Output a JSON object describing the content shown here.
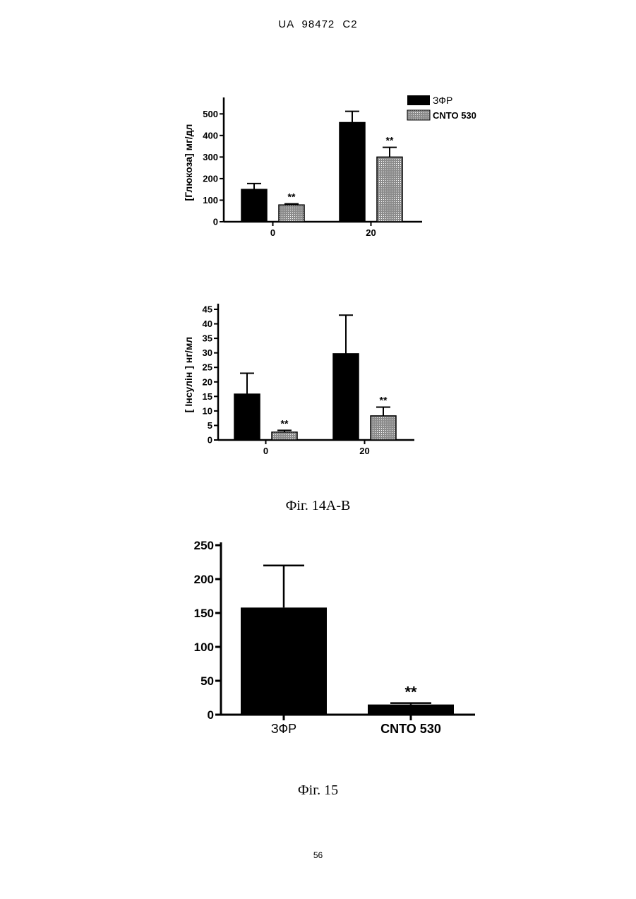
{
  "header": {
    "title": "UA   98472   C2"
  },
  "captions": {
    "fig14": "Фіг. 14А-В",
    "fig15": "Фіг. 15"
  },
  "page_number": "56",
  "colors": {
    "vehicle": "#000000",
    "treatment_fill": "#8c8c8c"
  },
  "chart_data": [
    {
      "type": "bar",
      "ylabel": "[Глюкоза] мг/дл",
      "categories": [
        "0",
        "20"
      ],
      "yticks": [
        "0",
        "100",
        "200",
        "300",
        "400",
        "500"
      ],
      "ylim": [
        0,
        550
      ],
      "legend_position": "top-right",
      "series": [
        {
          "name": "ЗФР",
          "values": [
            150,
            460
          ],
          "errors": [
            27,
            52
          ],
          "annotations": [
            "",
            ""
          ]
        },
        {
          "name": "CNTO 530",
          "values": [
            78,
            300
          ],
          "errors": [
            5,
            45
          ],
          "annotations": [
            "**",
            "**"
          ]
        }
      ]
    },
    {
      "type": "bar",
      "ylabel": "[ Інсулін ] нг/мл",
      "categories": [
        "0",
        "20"
      ],
      "yticks": [
        "0",
        "5",
        "10",
        "15",
        "20",
        "25",
        "30",
        "35",
        "40",
        "45"
      ],
      "ylim": [
        0,
        45
      ],
      "series": [
        {
          "values": [
            15.8,
            29.7
          ],
          "errors": [
            7.2,
            13.3
          ],
          "annotations": [
            "",
            ""
          ]
        },
        {
          "values": [
            2.7,
            8.3
          ],
          "errors": [
            0.6,
            3.0
          ],
          "annotations": [
            "**",
            "**"
          ]
        }
      ]
    },
    {
      "type": "bar",
      "categories": [
        "ЗФР",
        "CNTO 530"
      ],
      "yticks": [
        "0",
        "50",
        "100",
        "150",
        "200",
        "250"
      ],
      "ylim": [
        0,
        250
      ],
      "values": [
        158,
        15
      ],
      "errors": [
        62,
        2
      ],
      "annotations": [
        "",
        "**"
      ]
    }
  ]
}
